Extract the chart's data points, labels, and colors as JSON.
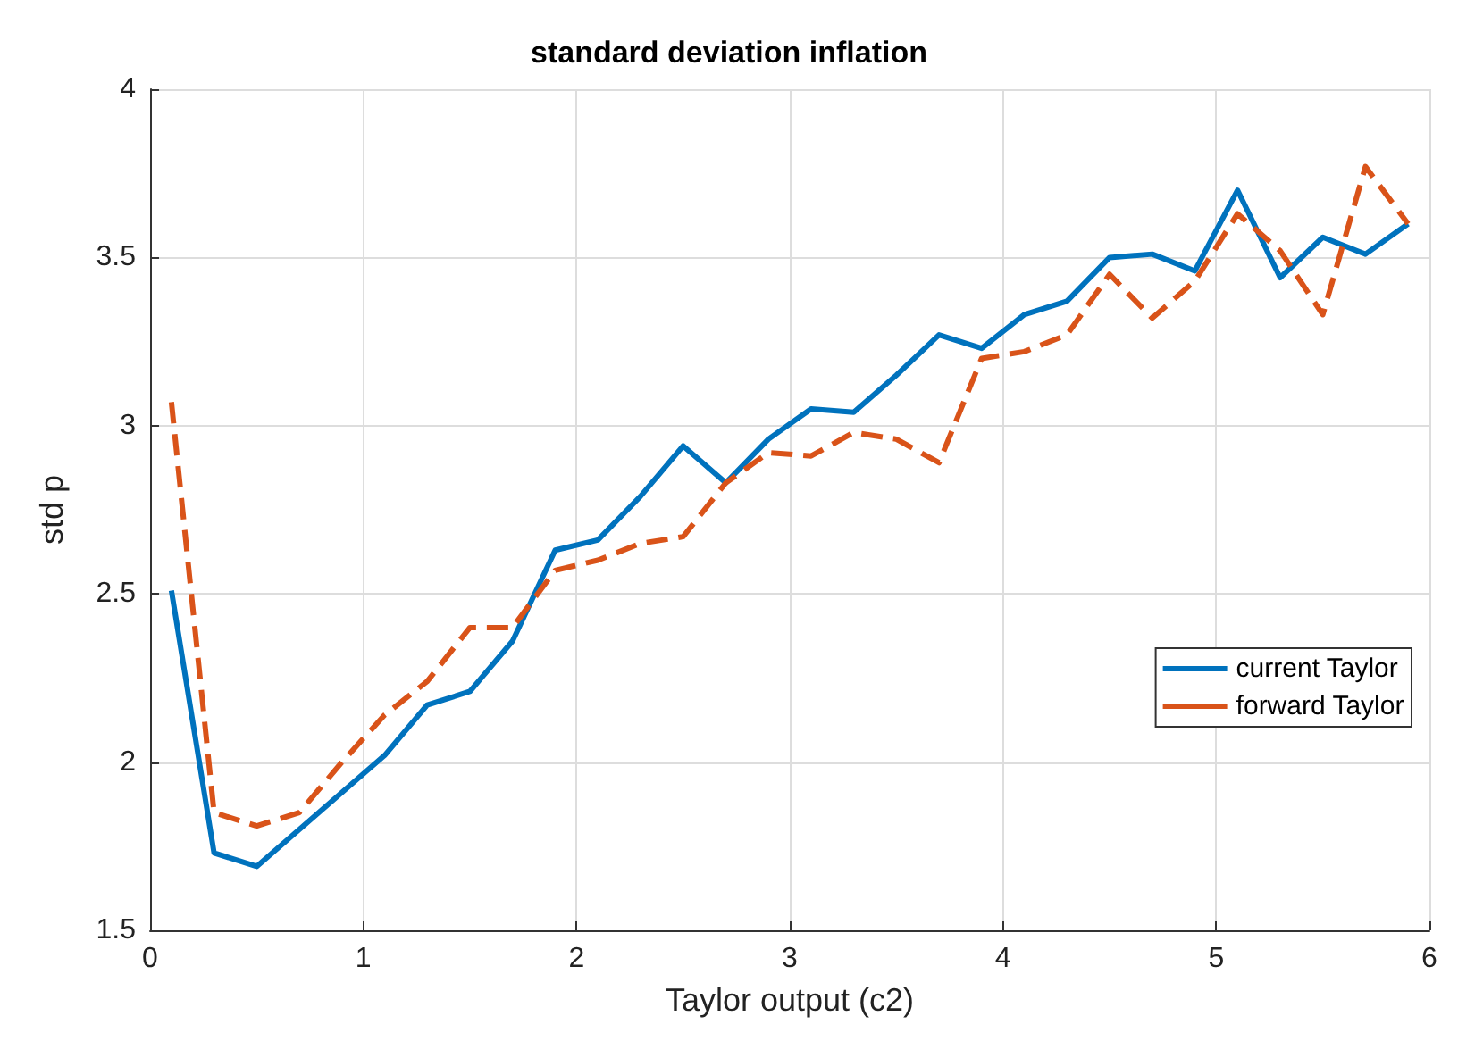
{
  "chart_data": {
    "type": "line",
    "title": "standard deviation inflation",
    "xlabel": "Taylor output (c2)",
    "ylabel": "std p",
    "x": [
      0.1,
      0.3,
      0.5,
      0.7,
      0.9,
      1.1,
      1.3,
      1.5,
      1.7,
      1.9,
      2.1,
      2.3,
      2.5,
      2.7,
      2.9,
      3.1,
      3.3,
      3.5,
      3.7,
      3.9,
      4.1,
      4.3,
      4.5,
      4.7,
      4.9,
      5.1,
      5.3,
      5.5,
      5.7,
      5.9
    ],
    "series": [
      {
        "name": "current Taylor",
        "color": "#0072bd",
        "line_style": "solid",
        "values": [
          2.51,
          1.73,
          1.69,
          1.8,
          1.91,
          2.02,
          2.17,
          2.21,
          2.36,
          2.63,
          2.66,
          2.79,
          2.94,
          2.83,
          2.96,
          3.05,
          3.04,
          3.15,
          3.27,
          3.23,
          3.33,
          3.37,
          3.5,
          3.51,
          3.46,
          3.7,
          3.44,
          3.56,
          3.51,
          3.6
        ]
      },
      {
        "name": "forward Taylor",
        "color": "#d95319",
        "line_style": "dashed",
        "values": [
          3.07,
          1.85,
          1.81,
          1.85,
          2.0,
          2.14,
          2.24,
          2.4,
          2.4,
          2.57,
          2.6,
          2.65,
          2.67,
          2.83,
          2.92,
          2.91,
          2.98,
          2.96,
          2.89,
          3.2,
          3.22,
          3.27,
          3.45,
          3.32,
          3.43,
          3.63,
          3.52,
          3.33,
          3.77,
          3.6
        ]
      }
    ],
    "xlim": [
      0,
      6
    ],
    "xticks": [
      0,
      1,
      2,
      3,
      4,
      5,
      6
    ],
    "ylim": [
      1.5,
      4
    ],
    "yticks": [
      1.5,
      2,
      2.5,
      3,
      3.5,
      4
    ],
    "grid": true,
    "legend": "right",
    "marker": "none"
  }
}
